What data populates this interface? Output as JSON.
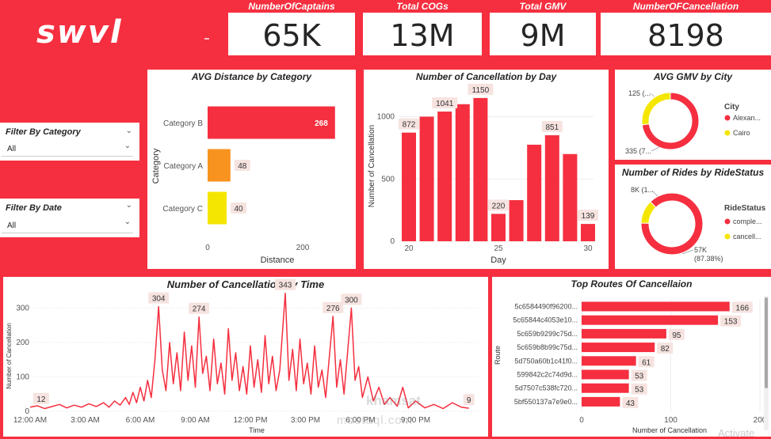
{
  "brand": {
    "logo_text": "swvl",
    "bg_color": "#f52f3f"
  },
  "kpis": [
    {
      "label": "NumberOfCaptains",
      "value": "65K"
    },
    {
      "label": "Total COGs",
      "value": "13M"
    },
    {
      "label": "Total GMV",
      "value": "9M"
    },
    {
      "label": "NumberOFCancellation",
      "value": "8198"
    }
  ],
  "filters": [
    {
      "label": "Filter By Category",
      "value": "All"
    },
    {
      "label": "Filter By Date",
      "value": "All"
    }
  ],
  "watermark": {
    "line1": "khamsat",
    "line2": "mostaql.com",
    "corner": "Activate"
  },
  "chart_data": [
    {
      "id": "avg_distance",
      "type": "bar",
      "orientation": "horizontal",
      "title": "AVG Distance by Category",
      "categories": [
        "Category B",
        "Category A",
        "Category C"
      ],
      "values": [
        268,
        48,
        40
      ],
      "value_labels": [
        "268",
        "48",
        "40"
      ],
      "colors": [
        "#f52f3f",
        "#f7931e",
        "#f5e602"
      ],
      "xlabel": "Distance",
      "ylabel": "Category",
      "xlim": [
        0,
        280
      ],
      "xticks": [
        0,
        200
      ],
      "xtick_labels": [
        "0",
        "200"
      ]
    },
    {
      "id": "cancel_by_day",
      "type": "bar",
      "title": "Number of Cancellation by Day",
      "x": [
        20,
        21,
        22,
        23,
        24,
        25,
        26,
        27,
        28,
        29,
        30
      ],
      "values": [
        872,
        1000,
        1041,
        1100,
        1150,
        220,
        330,
        775,
        851,
        700,
        139
      ],
      "data_labels": {
        "0": "872",
        "2": "1041",
        "4": "1150",
        "5": "220",
        "8": "851",
        "10": "139"
      },
      "xlabel": "Day",
      "ylabel": "Number of Cancellation",
      "ylim": [
        0,
        1200
      ],
      "yticks": [
        0,
        500,
        1000
      ],
      "ytick_labels": [
        "0",
        "500",
        "1000"
      ],
      "xticks": [
        20,
        25,
        30
      ],
      "xtick_labels": [
        "20",
        "25",
        "30"
      ],
      "color": "#f52f3f"
    },
    {
      "id": "avg_gmv_city",
      "type": "pie",
      "donut": true,
      "title": "AVG GMV by City",
      "legend_title": "City",
      "labels": [
        "Alexan...",
        "Cairo"
      ],
      "values": [
        335,
        125
      ],
      "slice_labels": [
        "335 (7...",
        "125 (..."
      ],
      "colors": [
        "#f52f3f",
        "#f5e602"
      ]
    },
    {
      "id": "rides_by_status",
      "type": "pie",
      "donut": true,
      "title": "Number of Rides by RideStatus",
      "legend_title": "RideStatus",
      "labels": [
        "comple...",
        "cancell..."
      ],
      "values": [
        57000,
        8000
      ],
      "slice_labels": [
        "57K",
        "8K (1..."
      ],
      "slice_sublabels": [
        "(87.38%)",
        ""
      ],
      "colors": [
        "#f52f3f",
        "#f5e602"
      ]
    },
    {
      "id": "cancel_by_time",
      "type": "line",
      "title": "Number of Cancellation by Time",
      "xlabel": "Time",
      "ylabel": "Number of Cancellation",
      "x_range_hours": [
        0,
        24
      ],
      "ylim": [
        0,
        340
      ],
      "yticks": [
        0,
        100,
        200,
        300
      ],
      "ytick_labels": [
        "0",
        "100",
        "200",
        "300"
      ],
      "xticks": [
        0,
        3,
        6,
        9,
        12,
        15,
        18,
        21
      ],
      "xtick_labels": [
        "12:00 AM",
        "3:00 AM",
        "6:00 AM",
        "9:00 AM",
        "12:00 PM",
        "3:00 PM",
        "6:00 PM",
        "9:00 PM"
      ],
      "annotations": [
        {
          "x": 0.6,
          "y": 12,
          "label": "12"
        },
        {
          "x": 7.0,
          "y": 304,
          "label": "304"
        },
        {
          "x": 9.2,
          "y": 274,
          "label": "274"
        },
        {
          "x": 13.9,
          "y": 343,
          "label": "343"
        },
        {
          "x": 16.5,
          "y": 276,
          "label": "276"
        },
        {
          "x": 17.5,
          "y": 300,
          "label": "300"
        },
        {
          "x": 23.9,
          "y": 9,
          "label": "9"
        }
      ],
      "points": [
        [
          0,
          12
        ],
        [
          0.4,
          16
        ],
        [
          0.8,
          8
        ],
        [
          1.2,
          14
        ],
        [
          1.6,
          20
        ],
        [
          2,
          10
        ],
        [
          2.4,
          18
        ],
        [
          2.8,
          12
        ],
        [
          3.2,
          22
        ],
        [
          3.6,
          14
        ],
        [
          4,
          25
        ],
        [
          4.3,
          12
        ],
        [
          4.6,
          30
        ],
        [
          4.9,
          18
        ],
        [
          5.2,
          40
        ],
        [
          5.4,
          20
        ],
        [
          5.6,
          55
        ],
        [
          5.8,
          25
        ],
        [
          6,
          70
        ],
        [
          6.2,
          30
        ],
        [
          6.4,
          90
        ],
        [
          6.6,
          40
        ],
        [
          6.8,
          150
        ],
        [
          7,
          304
        ],
        [
          7.2,
          120
        ],
        [
          7.4,
          60
        ],
        [
          7.6,
          200
        ],
        [
          7.8,
          80
        ],
        [
          8,
          170
        ],
        [
          8.2,
          60
        ],
        [
          8.4,
          230
        ],
        [
          8.6,
          90
        ],
        [
          8.8,
          190
        ],
        [
          9,
          70
        ],
        [
          9.2,
          274
        ],
        [
          9.4,
          110
        ],
        [
          9.6,
          160
        ],
        [
          9.8,
          60
        ],
        [
          10,
          210
        ],
        [
          10.2,
          80
        ],
        [
          10.4,
          140
        ],
        [
          10.6,
          50
        ],
        [
          10.8,
          240
        ],
        [
          11,
          90
        ],
        [
          11.2,
          170
        ],
        [
          11.4,
          60
        ],
        [
          11.6,
          130
        ],
        [
          11.8,
          50
        ],
        [
          12,
          190
        ],
        [
          12.2,
          70
        ],
        [
          12.4,
          150
        ],
        [
          12.6,
          55
        ],
        [
          12.8,
          220
        ],
        [
          13,
          80
        ],
        [
          13.2,
          160
        ],
        [
          13.4,
          60
        ],
        [
          13.6,
          120
        ],
        [
          13.9,
          343
        ],
        [
          14.1,
          90
        ],
        [
          14.3,
          180
        ],
        [
          14.5,
          60
        ],
        [
          14.7,
          210
        ],
        [
          14.9,
          80
        ],
        [
          15.1,
          140
        ],
        [
          15.3,
          50
        ],
        [
          15.5,
          190
        ],
        [
          15.7,
          70
        ],
        [
          15.9,
          120
        ],
        [
          16.1,
          40
        ],
        [
          16.5,
          276
        ],
        [
          16.7,
          70
        ],
        [
          16.9,
          150
        ],
        [
          17.1,
          50
        ],
        [
          17.5,
          300
        ],
        [
          17.7,
          90
        ],
        [
          17.9,
          130
        ],
        [
          18.1,
          40
        ],
        [
          18.4,
          100
        ],
        [
          18.7,
          30
        ],
        [
          19,
          70
        ],
        [
          19.3,
          20
        ],
        [
          19.6,
          40
        ],
        [
          20,
          15
        ],
        [
          20.3,
          70
        ],
        [
          20.6,
          10
        ],
        [
          21,
          30
        ],
        [
          21.5,
          10
        ],
        [
          22,
          20
        ],
        [
          22.5,
          8
        ],
        [
          23,
          25
        ],
        [
          23.5,
          12
        ],
        [
          23.9,
          9
        ]
      ],
      "color": "#f52f3f"
    },
    {
      "id": "top_routes",
      "type": "bar",
      "orientation": "horizontal",
      "title": "Top Routes Of Cancellaion",
      "categories": [
        "5c6584490f96200...",
        "5c65844c4053e10...",
        "5c659b9299c75d...",
        "5c659b8b99c75d...",
        "5d750a60b1c41f0...",
        "599842c2c74d9d...",
        "5d7507c538fc720...",
        "5bf550137a7e9e0..."
      ],
      "values": [
        166,
        153,
        95,
        82,
        61,
        53,
        53,
        43
      ],
      "value_labels": [
        "166",
        "153",
        "95",
        "82",
        "61",
        "53",
        "53",
        "43"
      ],
      "xlabel": "Number of Cancellation",
      "ylabel": "Route",
      "xlim": [
        0,
        200
      ],
      "xticks": [
        0,
        100,
        200
      ],
      "xtick_labels": [
        "0",
        "100",
        "200"
      ],
      "color": "#f52f3f"
    }
  ]
}
